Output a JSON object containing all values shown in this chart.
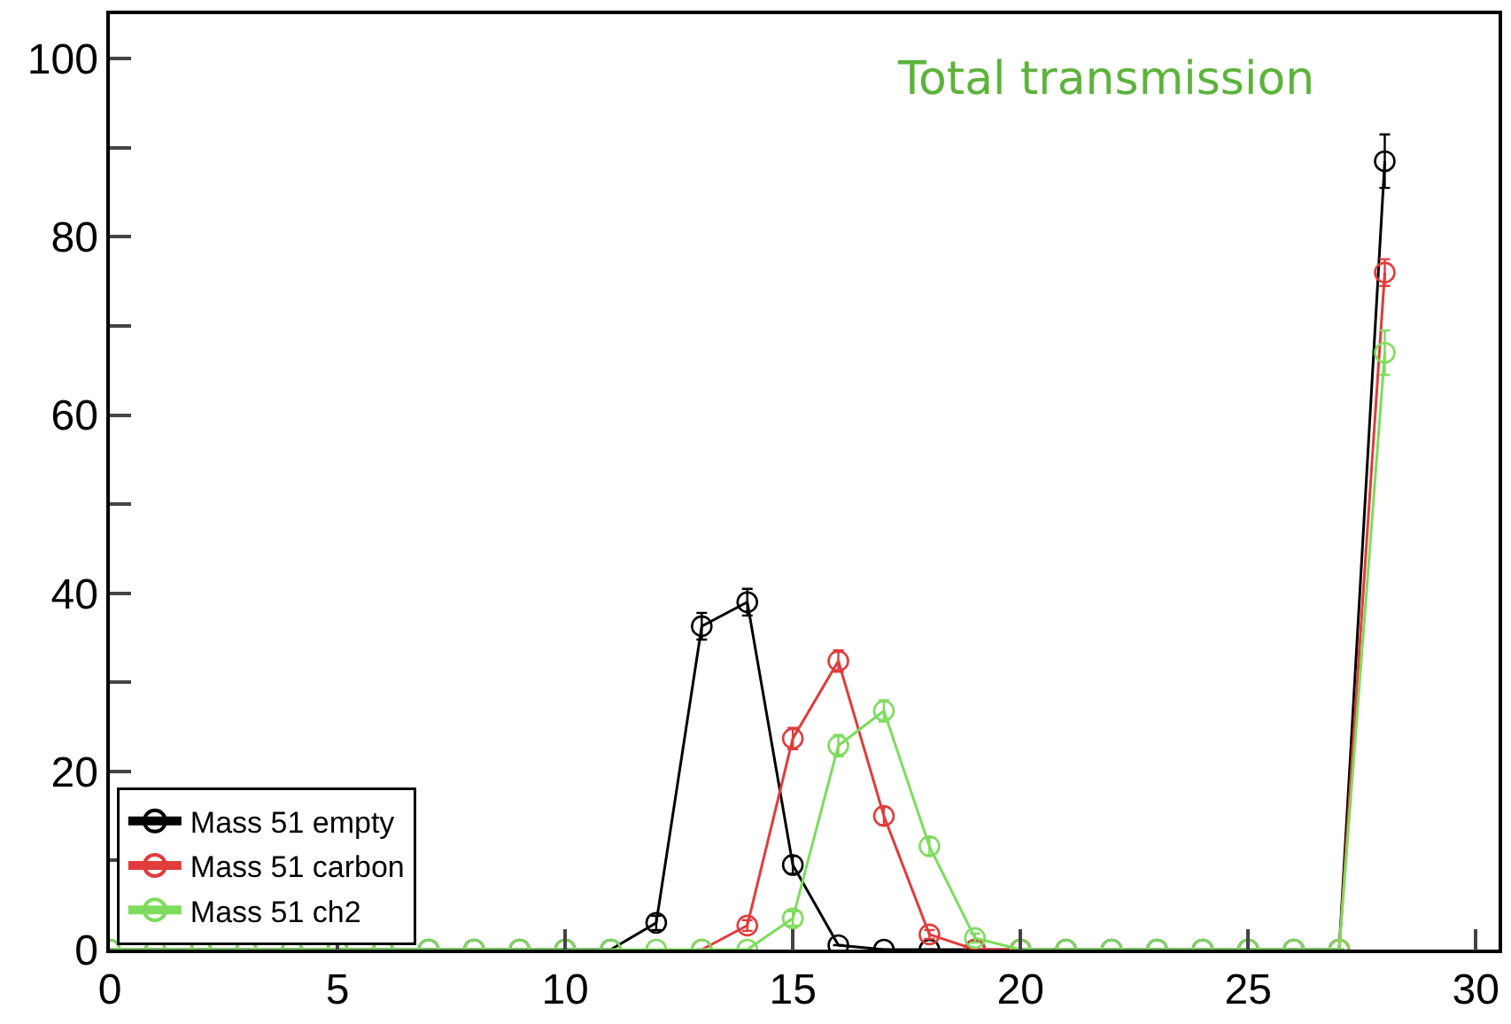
{
  "chart_data": {
    "type": "line",
    "x": [
      0,
      1,
      2,
      3,
      4,
      5,
      6,
      7,
      8,
      9,
      10,
      11,
      12,
      13,
      14,
      15,
      16,
      17,
      18,
      19,
      20,
      21,
      22,
      23,
      24,
      25,
      26,
      27,
      28
    ],
    "series": [
      {
        "name": "Mass 51 empty",
        "color": "#000000",
        "values": [
          0,
          0,
          0,
          0,
          0,
          0,
          0,
          0,
          0,
          0,
          0,
          0,
          3,
          36.3,
          39,
          9.5,
          0.5,
          0,
          0,
          0,
          0,
          0,
          0,
          0,
          0,
          0,
          0,
          0,
          88.5
        ],
        "errors": [
          null,
          null,
          null,
          null,
          null,
          null,
          null,
          null,
          null,
          null,
          null,
          null,
          0.8,
          1.5,
          1.5,
          1,
          null,
          null,
          null,
          null,
          null,
          null,
          null,
          null,
          null,
          null,
          null,
          null,
          3
        ]
      },
      {
        "name": "Mass 51 carbon",
        "color": "#e03c3c",
        "values": [
          null,
          null,
          null,
          null,
          null,
          null,
          null,
          null,
          null,
          null,
          null,
          null,
          null,
          0,
          2.7,
          23.7,
          32.4,
          15,
          1.7,
          0,
          0,
          null,
          null,
          null,
          null,
          null,
          null,
          0,
          76
        ],
        "errors": [
          null,
          null,
          null,
          null,
          null,
          null,
          null,
          null,
          null,
          null,
          null,
          null,
          null,
          null,
          0.6,
          1.2,
          1.2,
          1,
          0.5,
          null,
          null,
          null,
          null,
          null,
          null,
          null,
          null,
          null,
          1.5
        ]
      },
      {
        "name": "Mass 51 ch2",
        "color": "#7ddc5c",
        "values": [
          0,
          0,
          0,
          0,
          0,
          0,
          0,
          0,
          0,
          0,
          0,
          0,
          0,
          0,
          0,
          3.5,
          22.9,
          26.8,
          11.6,
          1.3,
          0,
          0,
          0,
          0,
          0,
          0,
          0,
          0,
          67
        ],
        "errors": [
          null,
          null,
          null,
          null,
          null,
          null,
          null,
          null,
          null,
          null,
          null,
          null,
          null,
          null,
          null,
          0.8,
          1.2,
          1.2,
          1,
          0.5,
          null,
          null,
          null,
          null,
          null,
          null,
          null,
          null,
          2.5
        ]
      }
    ],
    "xlim": [
      0,
      30.5
    ],
    "xticks": [
      0,
      5,
      10,
      15,
      20,
      25,
      30
    ],
    "ylim": [
      0,
      105
    ],
    "yticks": [
      0,
      {
        "value": 10,
        "label": null
      },
      20,
      {
        "value": 30,
        "label": null
      },
      40,
      {
        "value": 50,
        "label": null
      },
      60,
      {
        "value": 70,
        "label": null
      },
      80,
      {
        "value": 90,
        "label": null
      },
      100
    ],
    "annotations": [
      "Total transmission"
    ],
    "legend": "bottom left",
    "marker": "circle",
    "line_style": "solid"
  }
}
